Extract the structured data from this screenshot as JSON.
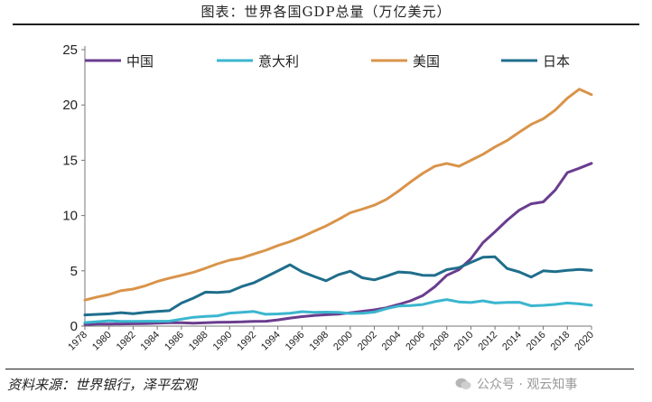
{
  "title": "图表：世界各国GDP总量（万亿美元）",
  "source": "资料来源：世界银行，泽平宏观",
  "watermark": "公众号 · 观云知事",
  "chart_data": {
    "type": "line",
    "title": "图表：世界各国GDP总量（万亿美元）",
    "xlabel": "",
    "ylabel": "",
    "ylim": [
      0,
      25
    ],
    "yticks": [
      0,
      5,
      10,
      15,
      20,
      25
    ],
    "grid": false,
    "legend_position": "top",
    "x": [
      1978,
      1979,
      1980,
      1981,
      1982,
      1983,
      1984,
      1985,
      1986,
      1987,
      1988,
      1989,
      1990,
      1991,
      1992,
      1993,
      1994,
      1995,
      1996,
      1997,
      1998,
      1999,
      2000,
      2001,
      2002,
      2003,
      2004,
      2005,
      2006,
      2007,
      2008,
      2009,
      2010,
      2011,
      2012,
      2013,
      2014,
      2015,
      2016,
      2017,
      2018,
      2019,
      2020
    ],
    "xtick_labels": [
      "1978",
      "1980",
      "1982",
      "1984",
      "1986",
      "1988",
      "1990",
      "1992",
      "1994",
      "1996",
      "1998",
      "2000",
      "2002",
      "2004",
      "2006",
      "2008",
      "2010",
      "2012",
      "2014",
      "2016",
      "2018",
      "2020"
    ],
    "series": [
      {
        "name": "中国",
        "color": "#6a3d8f",
        "values": [
          0.15,
          0.18,
          0.19,
          0.2,
          0.21,
          0.23,
          0.26,
          0.31,
          0.3,
          0.27,
          0.31,
          0.35,
          0.36,
          0.38,
          0.43,
          0.44,
          0.56,
          0.73,
          0.86,
          0.96,
          1.03,
          1.09,
          1.21,
          1.34,
          1.47,
          1.66,
          1.96,
          2.29,
          2.75,
          3.55,
          4.59,
          5.1,
          6.09,
          7.55,
          8.53,
          9.57,
          10.48,
          11.06,
          11.23,
          12.31,
          13.89,
          14.28,
          14.72
        ]
      },
      {
        "name": "意大利",
        "color": "#3bb6cf",
        "values": [
          0.32,
          0.4,
          0.48,
          0.43,
          0.43,
          0.44,
          0.44,
          0.45,
          0.63,
          0.8,
          0.88,
          0.93,
          1.18,
          1.24,
          1.32,
          1.07,
          1.1,
          1.17,
          1.31,
          1.24,
          1.27,
          1.25,
          1.14,
          1.16,
          1.27,
          1.58,
          1.81,
          1.86,
          1.95,
          2.21,
          2.4,
          2.19,
          2.13,
          2.29,
          2.09,
          2.14,
          2.16,
          1.84,
          1.88,
          1.96,
          2.09,
          2.01,
          1.89
        ]
      },
      {
        "name": "美国",
        "color": "#d9944a",
        "values": [
          2.35,
          2.63,
          2.86,
          3.21,
          3.35,
          3.64,
          4.04,
          4.34,
          4.59,
          4.87,
          5.24,
          5.64,
          5.96,
          6.16,
          6.52,
          6.86,
          7.29,
          7.64,
          8.07,
          8.58,
          9.06,
          9.63,
          10.25,
          10.58,
          10.94,
          11.46,
          12.21,
          13.04,
          13.81,
          14.45,
          14.71,
          14.45,
          14.99,
          15.54,
          16.2,
          16.78,
          17.53,
          18.24,
          18.75,
          19.54,
          20.61,
          21.43,
          20.94
        ]
      },
      {
        "name": "日本",
        "color": "#1f6e8c",
        "values": [
          1.01,
          1.06,
          1.11,
          1.22,
          1.13,
          1.24,
          1.32,
          1.4,
          2.08,
          2.53,
          3.07,
          3.05,
          3.13,
          3.58,
          3.91,
          4.45,
          4.99,
          5.55,
          4.92,
          4.49,
          4.1,
          4.64,
          4.97,
          4.37,
          4.18,
          4.52,
          4.89,
          4.83,
          4.6,
          4.58,
          5.11,
          5.29,
          5.76,
          6.23,
          6.27,
          5.21,
          4.9,
          4.44,
          5.0,
          4.93,
          5.04,
          5.12,
          5.04
        ]
      }
    ]
  }
}
